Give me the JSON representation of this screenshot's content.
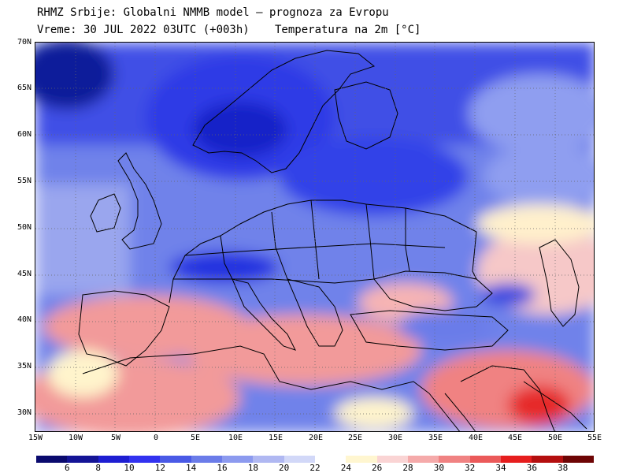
{
  "header": {
    "title": "RHMZ Srbije: Globalni NMMB model — prognoza za Evropu",
    "time": "Vreme: 30 JUL 2022 03UTC (+003h)",
    "parameter": "Temperatura na 2m [°C]"
  },
  "map": {
    "lat_labels": [
      "70N",
      "65N",
      "60N",
      "55N",
      "50N",
      "45N",
      "40N",
      "35N",
      "30N"
    ],
    "lon_labels": [
      "15W",
      "10W",
      "5W",
      "0",
      "5E",
      "10E",
      "15E",
      "20E",
      "25E",
      "30E",
      "35E",
      "40E",
      "45E",
      "50E",
      "55E"
    ]
  },
  "legend": {
    "labels": [
      "6",
      "8",
      "10",
      "12",
      "14",
      "16",
      "18",
      "20",
      "22",
      "24",
      "26",
      "28",
      "30",
      "32",
      "34",
      "36",
      "38"
    ],
    "colors": [
      "#0a0a6e",
      "#141496",
      "#1e1ed2",
      "#3232f0",
      "#4a5ae6",
      "#6b7ce9",
      "#8c9aef",
      "#b0b8f2",
      "#d2d8f8",
      "#ffffff",
      "#fff6d0",
      "#fad4d4",
      "#f5aaaa",
      "#f08282",
      "#eb5a5a",
      "#e61e1e",
      "#b40f0f",
      "#6e0505"
    ]
  }
}
